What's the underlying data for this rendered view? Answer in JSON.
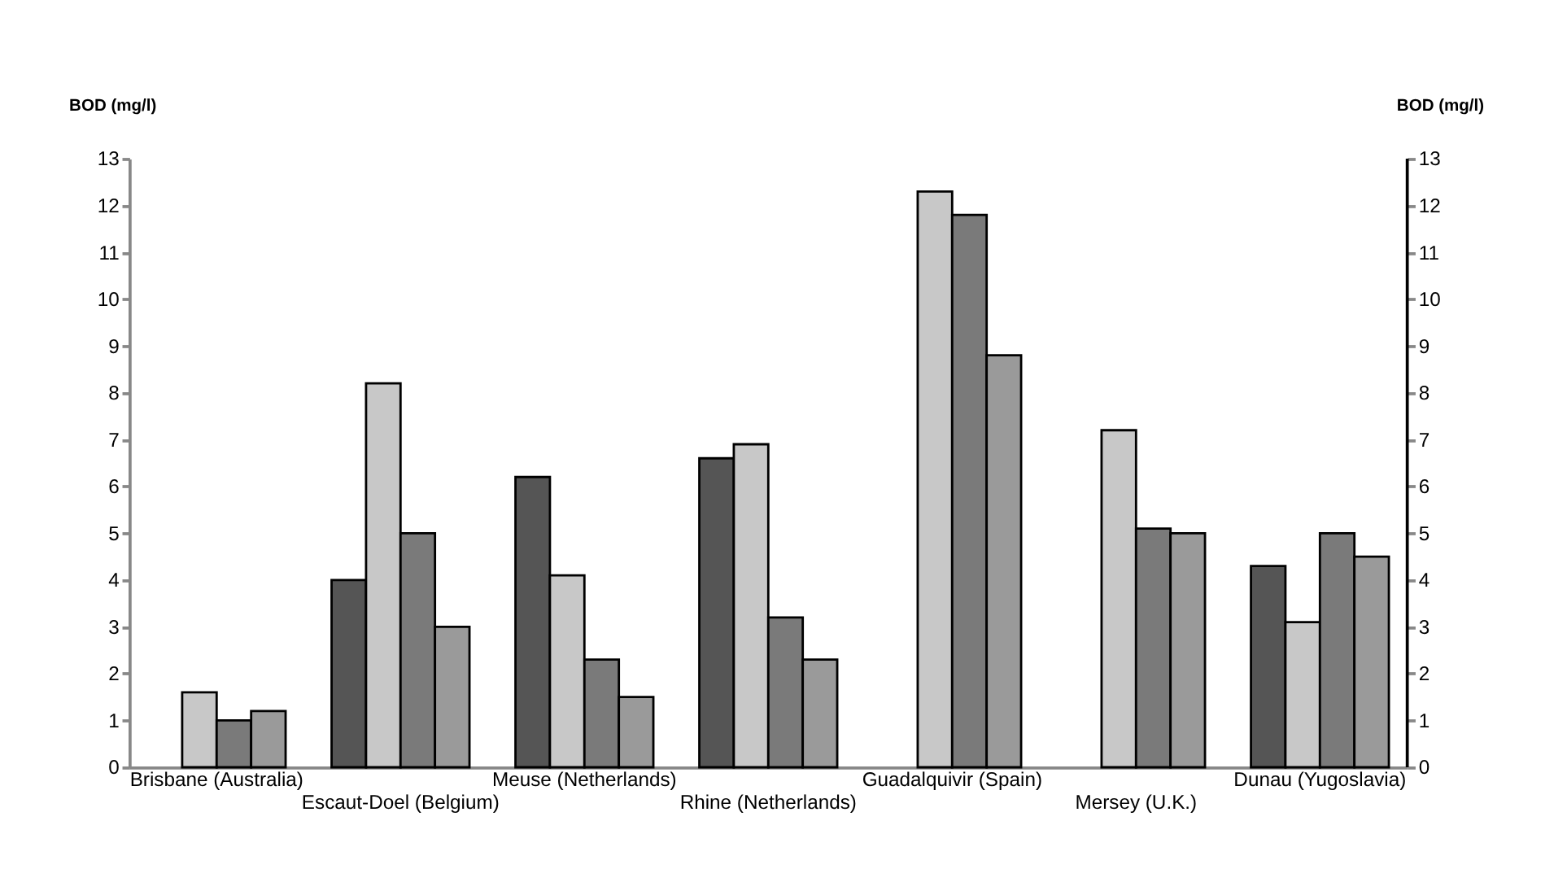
{
  "chart_data": {
    "type": "bar",
    "ylabel": "BOD (mg/l)",
    "y2label": "BOD (mg/l)",
    "categories": [
      "Brisbane (Australia)",
      "Escaut-Doel (Belgium)",
      "Meuse (Netherlands)",
      "Rhine (Netherlands)",
      "Guadalquivir  (Spain)",
      "Mersey (U.K.)",
      "Dunau (Yugoslavia)"
    ],
    "series": [
      {
        "color": "#555555",
        "values": [
          null,
          4.0,
          6.2,
          6.6,
          null,
          null,
          4.3
        ]
      },
      {
        "color": "#c8c8c8",
        "values": [
          1.6,
          8.2,
          4.1,
          6.9,
          12.3,
          7.2,
          3.1
        ]
      },
      {
        "color": "#7a7a7a",
        "values": [
          1.0,
          5.0,
          2.3,
          3.2,
          11.8,
          5.1,
          5.0
        ]
      },
      {
        "color": "#9a9a9a",
        "values": [
          1.2,
          3.0,
          1.5,
          2.3,
          8.8,
          5.0,
          4.5
        ]
      }
    ],
    "ylim": [
      0,
      13
    ],
    "yticks": [
      0,
      1,
      2,
      3,
      4,
      5,
      6,
      7,
      8,
      9,
      10,
      11,
      12,
      13
    ],
    "y2lim": [
      0,
      13
    ],
    "y2ticks": [
      0,
      1,
      2,
      3,
      4,
      5,
      6,
      7,
      8,
      9,
      10,
      11,
      12,
      13
    ],
    "grid": false,
    "legend": false
  }
}
